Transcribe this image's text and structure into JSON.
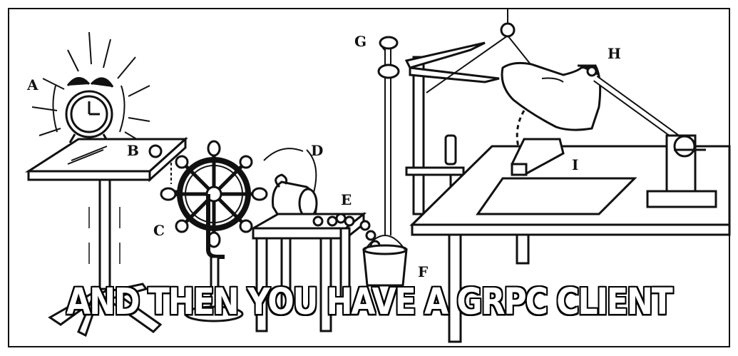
{
  "caption": "AND THEN YOU HAVE A GRPC CLIENT",
  "labels": {
    "a": "A",
    "b": "B",
    "c": "C",
    "d": "D",
    "e": "E",
    "f": "F",
    "g": "G",
    "h": "H",
    "i": "I"
  }
}
